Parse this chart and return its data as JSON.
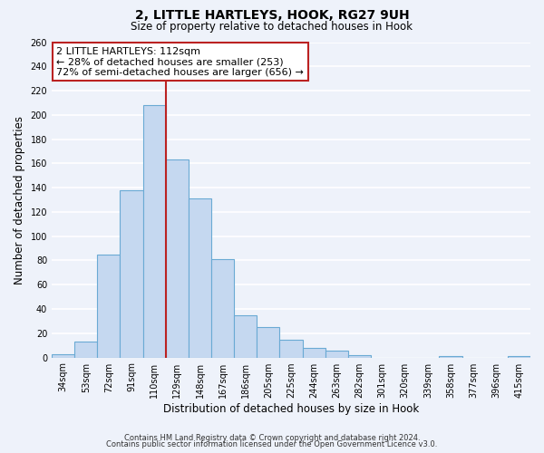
{
  "title": "2, LITTLE HARTLEYS, HOOK, RG27 9UH",
  "subtitle": "Size of property relative to detached houses in Hook",
  "xlabel": "Distribution of detached houses by size in Hook",
  "ylabel": "Number of detached properties",
  "bar_labels": [
    "34sqm",
    "53sqm",
    "72sqm",
    "91sqm",
    "110sqm",
    "129sqm",
    "148sqm",
    "167sqm",
    "186sqm",
    "205sqm",
    "225sqm",
    "244sqm",
    "263sqm",
    "282sqm",
    "301sqm",
    "320sqm",
    "339sqm",
    "358sqm",
    "377sqm",
    "396sqm",
    "415sqm"
  ],
  "bar_values": [
    3,
    13,
    85,
    138,
    208,
    163,
    131,
    81,
    35,
    25,
    15,
    8,
    6,
    2,
    0,
    0,
    0,
    1,
    0,
    0,
    1
  ],
  "bar_color": "#c5d8f0",
  "bar_edge_color": "#6aaad4",
  "vline_x": 4.5,
  "vline_color": "#bb2222",
  "annotation_title": "2 LITTLE HARTLEYS: 112sqm",
  "annotation_line1": "← 28% of detached houses are smaller (253)",
  "annotation_line2": "72% of semi-detached houses are larger (656) →",
  "annotation_box_color": "#ffffff",
  "annotation_box_edge": "#bb2222",
  "ylim": [
    0,
    260
  ],
  "yticks": [
    0,
    20,
    40,
    60,
    80,
    100,
    120,
    140,
    160,
    180,
    200,
    220,
    240,
    260
  ],
  "footer1": "Contains HM Land Registry data © Crown copyright and database right 2024.",
  "footer2": "Contains public sector information licensed under the Open Government Licence v3.0.",
  "bg_color": "#eef2fa",
  "grid_color": "#ffffff",
  "title_fontsize": 10,
  "subtitle_fontsize": 8.5,
  "xlabel_fontsize": 8.5,
  "ylabel_fontsize": 8.5,
  "tick_fontsize": 7,
  "footer_fontsize": 6,
  "ann_fontsize": 8
}
